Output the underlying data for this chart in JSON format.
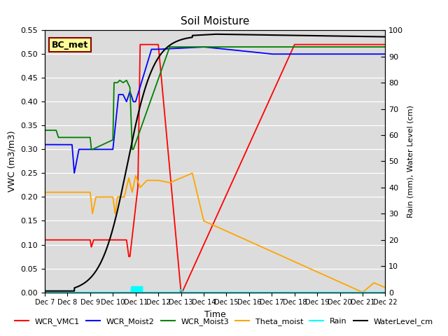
{
  "title": "Soil Moisture",
  "ylabel_left": "VWC (m3/m3)",
  "ylabel_right": "Rain (mm), Water Level (cm)",
  "xlabel": "Time",
  "ylim_left": [
    0.0,
    0.55
  ],
  "ylim_right": [
    0,
    100
  ],
  "bg_color": "#dcdcdc",
  "annotation_text": "BC_met",
  "annotation_box_color": "#ffff99",
  "annotation_box_edge": "#8B0000",
  "xtick_labels": [
    "Dec 7",
    "Dec 8",
    "Dec 9",
    "Dec 10",
    "Dec 11",
    "Dec 12",
    "Dec 13",
    "Dec 14",
    "Dec 15",
    "Dec 16",
    "Dec 17",
    "Dec 18",
    "Dec 19",
    "Dec 20",
    "Dec 21",
    "Dec 22"
  ],
  "legend_entries": [
    "WCR_VMC1",
    "WCR_Moist2",
    "WCR_Moist3",
    "Theta_moist",
    "Rain",
    "WaterLevel_cm"
  ],
  "legend_colors": [
    "red",
    "blue",
    "green",
    "orange",
    "cyan",
    "black"
  ],
  "figsize": [
    6.4,
    4.8
  ],
  "dpi": 100
}
